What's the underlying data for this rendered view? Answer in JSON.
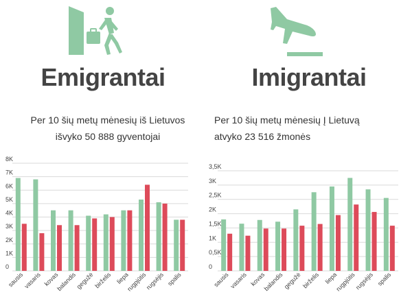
{
  "emigrants": {
    "title": "Emigrantai",
    "subtitle_line1": "Per 10 šių metų mėnesių iš Lietuvos",
    "subtitle_line2": "išvyko 50 888 gyventojai",
    "icon": "person-leaving-door-icon"
  },
  "immigrants": {
    "title": "Imigrantai",
    "subtitle_line1": "Per 10 šių metų mėnesių Į Lietuvą",
    "subtitle_line2": "atvyko 23 516 žmonės",
    "icon": "airplane-landing-icon"
  },
  "colors": {
    "green": "#8fc9a3",
    "red": "#dd4b5a",
    "grid": "#d9d9d9",
    "text": "#444444"
  },
  "chart_data": [
    {
      "type": "bar",
      "categories": [
        "sausis",
        "vasaris",
        "kovas",
        "balandis",
        "gegužė",
        "birželis",
        "liepa",
        "rugpjūtis",
        "rugsėjis",
        "spalis"
      ],
      "series": [
        {
          "values": [
            6900,
            6800,
            4500,
            4500,
            4100,
            4200,
            4500,
            5300,
            5100,
            3800
          ]
        },
        {
          "values": [
            3500,
            2800,
            3400,
            3400,
            3900,
            4000,
            4500,
            6400,
            5000,
            3800
          ]
        }
      ],
      "yticks": [
        "0",
        "1K",
        "2K",
        "3K",
        "4K",
        "5K",
        "6K",
        "7K",
        "8K"
      ],
      "ylim": [
        0,
        8000
      ],
      "grid": true,
      "xlabel": "",
      "ylabel": ""
    },
    {
      "type": "bar",
      "categories": [
        "sausis",
        "vasaris",
        "kovas",
        "balandis",
        "gegužė",
        "birželis",
        "liepa",
        "rugpjūtis",
        "rugsėjis",
        "spalis"
      ],
      "series": [
        {
          "values": [
            1800,
            1650,
            1780,
            1720,
            2150,
            2750,
            2950,
            3250,
            2850,
            2550
          ]
        },
        {
          "values": [
            1300,
            1230,
            1480,
            1480,
            1580,
            1640,
            1950,
            2320,
            2060,
            1580
          ]
        }
      ],
      "yticks": [
        "0",
        "0,5K",
        "1K",
        "1,5K",
        "2K",
        "2,5K",
        "3K",
        "3,5K"
      ],
      "ylim": [
        0,
        3500
      ],
      "grid": true,
      "xlabel": "",
      "ylabel": ""
    }
  ]
}
